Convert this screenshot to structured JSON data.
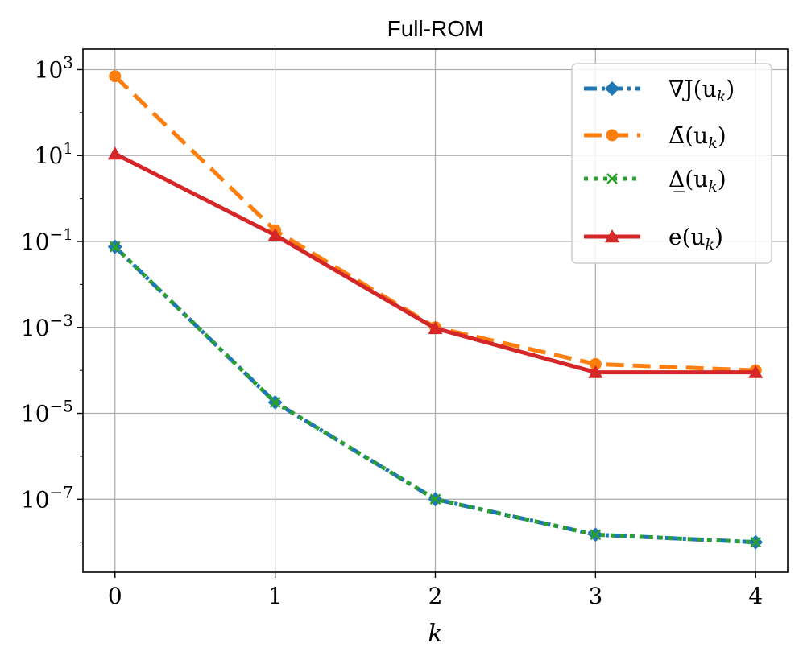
{
  "chart_data": {
    "type": "line",
    "title": "Full-ROM",
    "xlabel": "k",
    "ylabel": "",
    "yscale": "log",
    "xlim": [
      -0.2,
      4.2
    ],
    "ylim": [
      2e-09,
      3000
    ],
    "x": [
      0,
      1,
      2,
      3,
      4
    ],
    "x_ticks": [
      "0",
      "1",
      "2",
      "3",
      "4"
    ],
    "y_tick_exponents": [
      3,
      1,
      -1,
      -3,
      -5,
      -7
    ],
    "y_tick_base": "10",
    "grid": true,
    "legend_position": "top-right",
    "series": [
      {
        "name": "∇J(u_k)",
        "legend_main": "∇J(u",
        "legend_sub": "k",
        "legend_close": ")",
        "color": "#1f77b4",
        "line_style": "dashdot",
        "marker": "diamond",
        "values": [
          0.075,
          1.8e-05,
          1e-07,
          1.5e-08,
          1e-08
        ]
      },
      {
        "name": "Δ̄(u_k)",
        "legend_main": "Δ̄(u",
        "legend_sub": "k",
        "legend_close": ")",
        "color": "#ff7f0e",
        "line_style": "dashed",
        "marker": "circle",
        "values": [
          700,
          0.18,
          0.001,
          0.00014,
          0.0001
        ]
      },
      {
        "name": "Δ̲(u_k)",
        "legend_main": "Δ̲(u",
        "legend_sub": "k",
        "legend_close": ")",
        "color": "#2ca02c",
        "line_style": "dotted",
        "marker": "x",
        "values": [
          0.075,
          1.8e-05,
          1e-07,
          1.5e-08,
          1e-08
        ]
      },
      {
        "name": "e(u_k)",
        "legend_main": "e(u",
        "legend_sub": "k",
        "legend_close": ")",
        "color": "#d62728",
        "line_style": "solid",
        "marker": "triangle",
        "values": [
          11,
          0.14,
          0.00095,
          9e-05,
          9e-05
        ]
      }
    ]
  }
}
